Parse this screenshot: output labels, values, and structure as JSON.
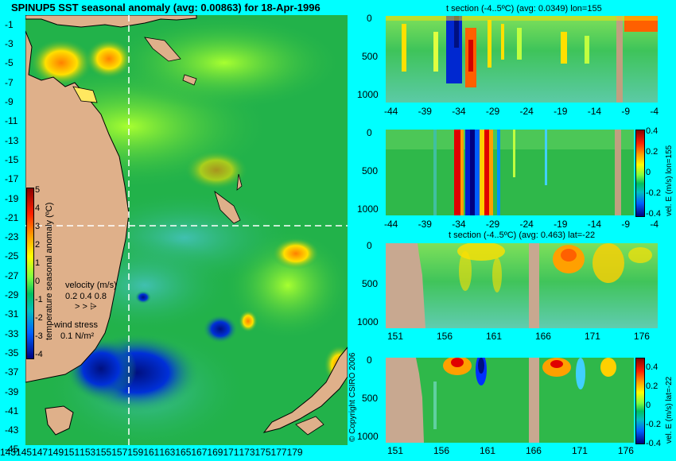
{
  "map": {
    "title": "SPINUP5 SST seasonal anomaly (avg: 0.00863) for 18-Apr-1996",
    "lat_labels": [
      "-1",
      "-3",
      "-5",
      "-7",
      "-9",
      "-11",
      "-13",
      "-15",
      "-17",
      "-19",
      "-21",
      "-23",
      "-25",
      "-27",
      "-29",
      "-31",
      "-33",
      "-35",
      "-37",
      "-39",
      "-41",
      "-43",
      "-45"
    ],
    "lon_labels": [
      "143",
      "145",
      "147",
      "149",
      "151",
      "153",
      "155",
      "157",
      "159",
      "161",
      "163",
      "165",
      "167",
      "169",
      "171",
      "173",
      "175",
      "177",
      "179"
    ],
    "colorbar_ticks": [
      "5",
      "4",
      "3",
      "2",
      "1",
      "0",
      "-1",
      "-2",
      "-3",
      "-4"
    ],
    "colorbar_label": "temperature seasonal anomaly (ºC)",
    "velocity_label": "velocity (m/s)",
    "velocity_scale": "0.2 0.4 0.8",
    "wind_label": "wind stress",
    "wind_scale": "0.1 N/m²",
    "copyright": "© Copyright CSIRO 2006",
    "colors": {
      "land": "#dfb08a",
      "ocean": "#22b24a",
      "warm": "#ffe000",
      "cold": "#0018c8",
      "crosshair": "#ffffff"
    }
  },
  "panels": [
    {
      "title": "t section (-4..5ºC) (avg: 0.0349) lon=155",
      "xticks": [
        "-44",
        "-39",
        "-34",
        "-29",
        "-24",
        "-19",
        "-14",
        "-9",
        "-4"
      ],
      "yticks": [
        "0",
        "500",
        "1000"
      ]
    },
    {
      "title": "",
      "xticks": [
        "-44",
        "-39",
        "-34",
        "-29",
        "-24",
        "-19",
        "-14",
        "-9",
        "-4"
      ],
      "yticks": [
        "0",
        "500",
        "1000"
      ],
      "cbar_ticks": [
        "0.4",
        "0.2",
        "0",
        "-0.2",
        "-0.4"
      ],
      "cbar_label": "vel. E (m/s) lon=155"
    },
    {
      "title": "t section (-4..5ºC) (avg: 0.463) lat=-22",
      "xticks": [
        "151",
        "156",
        "161",
        "166",
        "171",
        "176"
      ],
      "yticks": [
        "0",
        "500",
        "1000"
      ]
    },
    {
      "title": "",
      "xticks": [
        "151",
        "156",
        "161",
        "166",
        "171",
        "176"
      ],
      "yticks": [
        "0",
        "500",
        "1000"
      ],
      "cbar_ticks": [
        "0.4",
        "0.2",
        "0",
        "-0.2",
        "-0.4"
      ],
      "cbar_label": "vel. E (m/s) lat=-22"
    }
  ]
}
